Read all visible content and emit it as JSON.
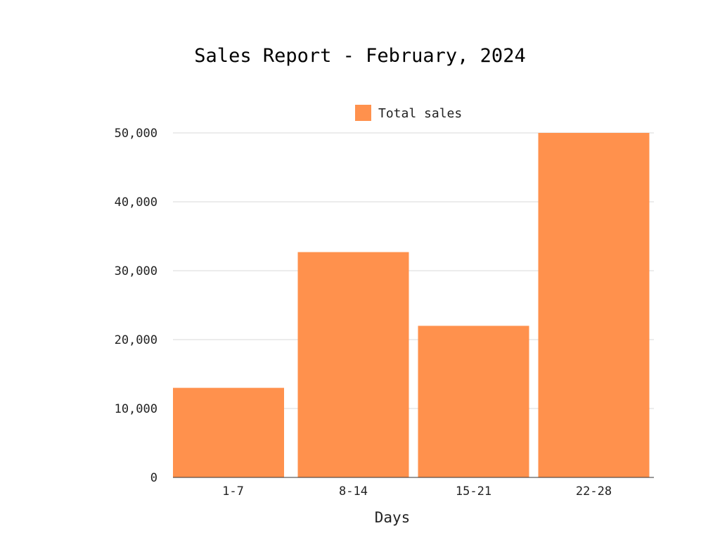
{
  "chart_data": {
    "type": "bar",
    "title": "Sales Report - February, 2024",
    "xlabel": "Days",
    "ylabel": "",
    "categories": [
      "1-7",
      "8-14",
      "15-21",
      "22-28"
    ],
    "series": [
      {
        "name": "Total sales",
        "color": "#ff914d",
        "values": [
          13000,
          32700,
          22000,
          50000
        ]
      }
    ],
    "ylim": [
      0,
      50000
    ],
    "yticks": [
      "0",
      "10,000",
      "20,000",
      "30,000",
      "40,000",
      "50,000"
    ],
    "ytick_values": [
      0,
      10000,
      20000,
      30000,
      40000,
      50000
    ],
    "grid": true,
    "legend_position": "top-center"
  }
}
